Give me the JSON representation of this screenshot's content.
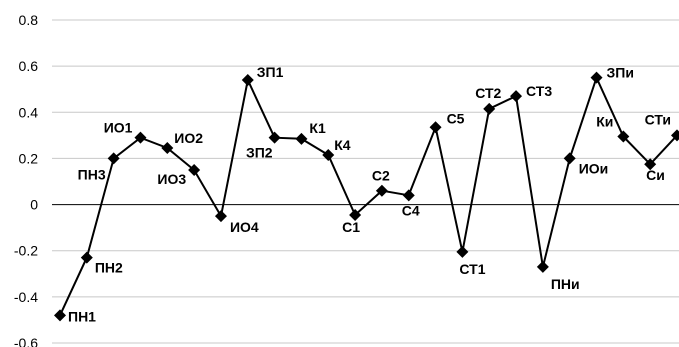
{
  "chart_data": {
    "type": "line",
    "title": "",
    "xlabel": "",
    "ylabel": "",
    "ylim": [
      -0.6,
      0.8
    ],
    "yticks": [
      0.8,
      0.6,
      0.4,
      0.2,
      0,
      -0.2,
      -0.4,
      -0.6
    ],
    "ytick_labels": [
      "0.8",
      "0.6",
      "0.4",
      "0.2",
      "0",
      "-0.2",
      "-0.4",
      "-0.6"
    ],
    "grid": "horizontal",
    "legend": "none",
    "marker": "diamond",
    "line_color": "#000000",
    "grid_color": "#c8c8c8",
    "categories": [
      "ПН1",
      "ПН2",
      "ПН3",
      "ИО1",
      "ИО2",
      "ИО3",
      "ИО4",
      "ЗП1",
      "ЗП2",
      "К1",
      "К4",
      "С1",
      "С2",
      "С4",
      "С5",
      "СТ1",
      "СТ2",
      "СТ3",
      "ПНи",
      "ИОи",
      "ЗПи",
      "Ки",
      "Си",
      "СТи"
    ],
    "series": [
      {
        "values": [
          -0.48,
          -0.23,
          0.2,
          0.29,
          0.245,
          0.15,
          -0.05,
          0.54,
          0.29,
          0.285,
          0.215,
          -0.045,
          0.06,
          0.04,
          0.335,
          -0.205,
          0.415,
          0.47,
          -0.27,
          0.2,
          0.55,
          0.295,
          0.175,
          0.3
        ]
      }
    ]
  }
}
